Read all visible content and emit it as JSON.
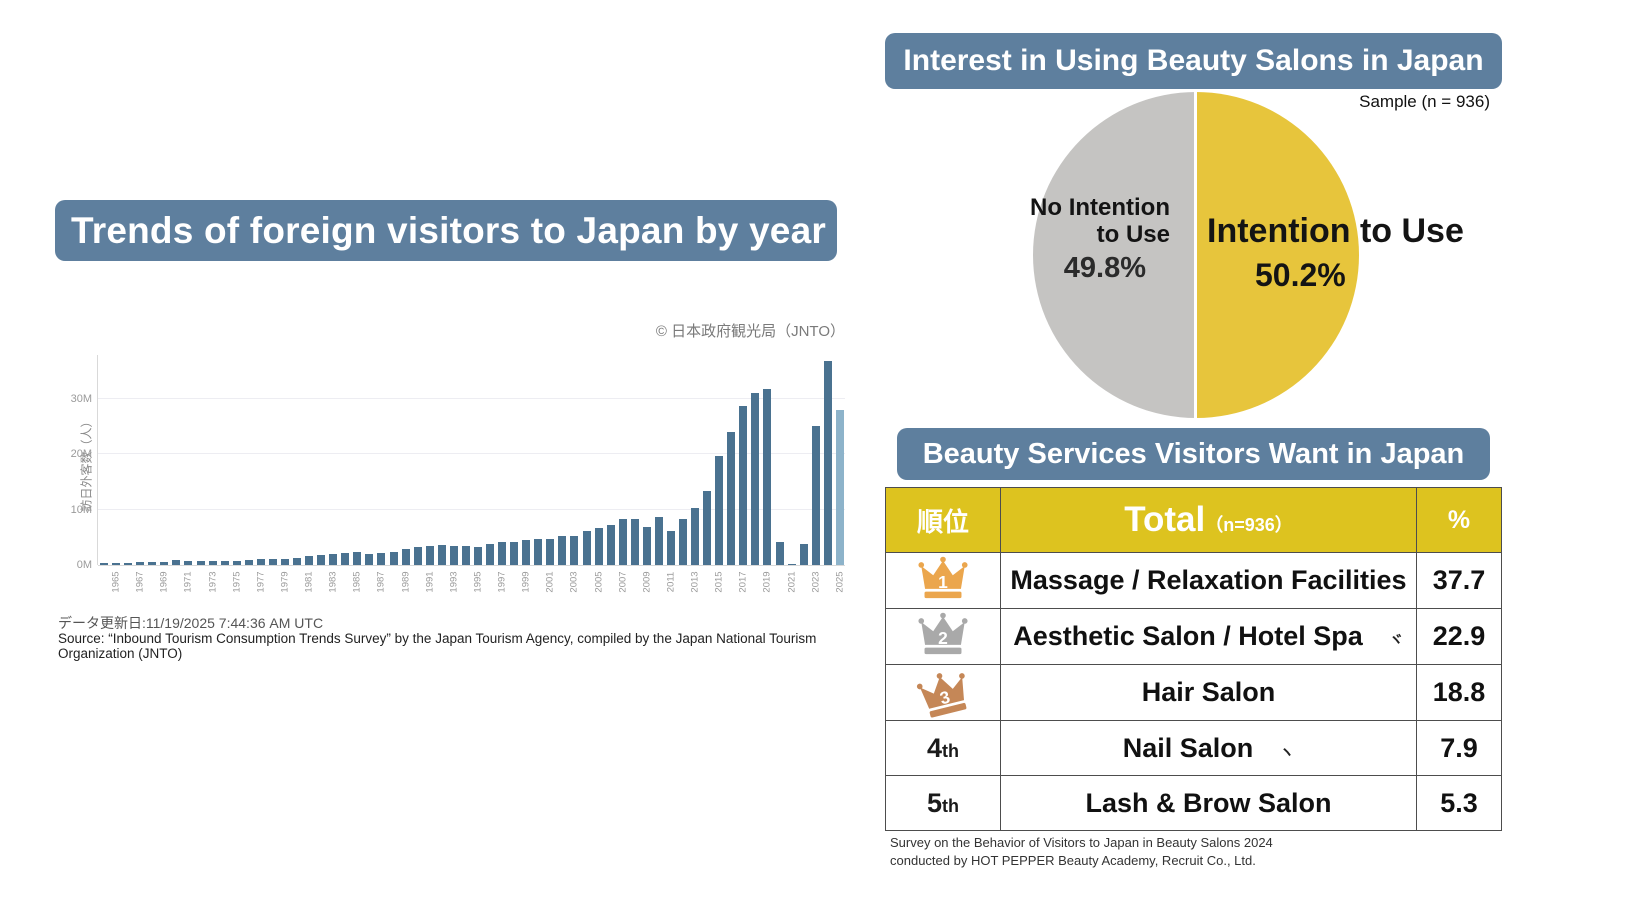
{
  "colors": {
    "banner_blue": "#5e7f9e",
    "bar_blue": "#4a7290",
    "bar_light_blue": "#8db3ca",
    "pie_yellow": "#e7c53c",
    "pie_gray": "#c5c4c2",
    "table_header_yellow": "#ddc31f",
    "crown_gold": "#eba64d",
    "crown_silver": "#a9a9a9",
    "crown_bronze": "#c58757"
  },
  "left_panel": {
    "title": "Trends of foreign visitors to Japan by year",
    "credit": "© 日本政府観光局（JNTO）",
    "ylabel": "訪日外客数（人）",
    "updated": "データ更新日:11/19/2025 7:44:36 AM UTC",
    "source": "Source: “Inbound Tourism Consumption Trends Survey” by the Japan Tourism Agency, compiled by the Japan National Tourism Organization (JNTO)"
  },
  "pie_panel": {
    "title": "Interest in Using Beauty Salons in Japan",
    "sample_label": "Sample (n = 936)",
    "left_label_line1": "No Intention",
    "left_label_line2": "to Use",
    "left_value": "49.8%",
    "right_label": "Intention to Use",
    "right_value": "50.2%"
  },
  "table_panel": {
    "title": "Beauty Services Visitors Want in Japan",
    "header": {
      "rank": "順位",
      "total": "Total",
      "total_note": "（n=936）",
      "percent": "%"
    },
    "rows": [
      {
        "rank": "1",
        "rank_style": "crown-gold",
        "service": "Massage / Relaxation Facilities",
        "mark": "",
        "percent": "37.7"
      },
      {
        "rank": "2",
        "rank_style": "crown-silver",
        "service": "Aesthetic Salon / Hotel Spa",
        "mark": "ヾ",
        "percent": "22.9"
      },
      {
        "rank": "3",
        "rank_style": "crown-bronze",
        "service": "Hair Salon",
        "mark": "",
        "percent": "18.8"
      },
      {
        "rank_num": "4",
        "rank_suffix": "th",
        "rank_style": "text",
        "service": "Nail Salon",
        "mark": "ヽ",
        "percent": "7.9"
      },
      {
        "rank_num": "5",
        "rank_suffix": "th",
        "rank_style": "text",
        "service": "Lash & Brow Salon",
        "mark": "",
        "percent": "5.3"
      }
    ],
    "footnote_line1": "Survey on the Behavior of Visitors to Japan in Beauty Salons 2024",
    "footnote_line2": "conducted by HOT PEPPER Beauty Academy, Recruit Co., Ltd."
  },
  "chart_data": [
    {
      "type": "bar",
      "title": "Trends of foreign visitors to Japan by year",
      "xlabel": "",
      "ylabel": "訪日外客数（人）",
      "ylim_millions": [
        0,
        38
      ],
      "yticks": [
        0,
        10,
        20,
        30
      ],
      "ytick_labels": [
        "0M",
        "10M",
        "20M",
        "30M"
      ],
      "grid": true,
      "x": [
        1964,
        1965,
        1966,
        1967,
        1968,
        1969,
        1970,
        1971,
        1972,
        1973,
        1974,
        1975,
        1976,
        1977,
        1978,
        1979,
        1980,
        1981,
        1982,
        1983,
        1984,
        1985,
        1986,
        1987,
        1988,
        1989,
        1990,
        1991,
        1992,
        1993,
        1994,
        1995,
        1996,
        1997,
        1998,
        1999,
        2000,
        2001,
        2002,
        2003,
        2004,
        2005,
        2006,
        2007,
        2008,
        2009,
        2010,
        2011,
        2012,
        2013,
        2014,
        2015,
        2016,
        2017,
        2018,
        2019,
        2020,
        2021,
        2022,
        2023,
        2024,
        2025
      ],
      "values_millions": [
        0.35,
        0.37,
        0.43,
        0.48,
        0.52,
        0.61,
        0.85,
        0.66,
        0.72,
        0.78,
        0.76,
        0.81,
        0.91,
        1.03,
        1.04,
        1.11,
        1.32,
        1.58,
        1.79,
        1.97,
        2.11,
        2.33,
        2.06,
        2.16,
        2.36,
        2.84,
        3.24,
        3.53,
        3.58,
        3.41,
        3.47,
        3.35,
        3.84,
        4.22,
        4.11,
        4.44,
        4.76,
        4.77,
        5.24,
        5.21,
        6.14,
        6.73,
        7.33,
        8.35,
        8.35,
        6.79,
        8.61,
        6.22,
        8.36,
        10.36,
        13.41,
        19.74,
        24.04,
        28.69,
        31.19,
        31.88,
        4.12,
        0.25,
        3.83,
        25.07,
        36.87,
        28.0
      ],
      "xtick_labels_every_other_year_from": 1965,
      "last_bar_highlighted": true
    },
    {
      "type": "pie",
      "title": "Interest in Using Beauty Salons in Japan",
      "sample_n": 936,
      "slices": [
        {
          "label": "Intention to Use",
          "value": 50.2,
          "color": "#e7c53c"
        },
        {
          "label": "No Intention to Use",
          "value": 49.8,
          "color": "#c5c4c2"
        }
      ]
    },
    {
      "type": "table",
      "title": "Beauty Services Visitors Want in Japan",
      "sample_n": 936,
      "categories": [
        "Massage / Relaxation Facilities",
        "Aesthetic Salon / Hotel Spa",
        "Hair Salon",
        "Nail Salon",
        "Lash & Brow Salon"
      ],
      "values": [
        37.7,
        22.9,
        18.8,
        7.9,
        5.3
      ]
    }
  ]
}
